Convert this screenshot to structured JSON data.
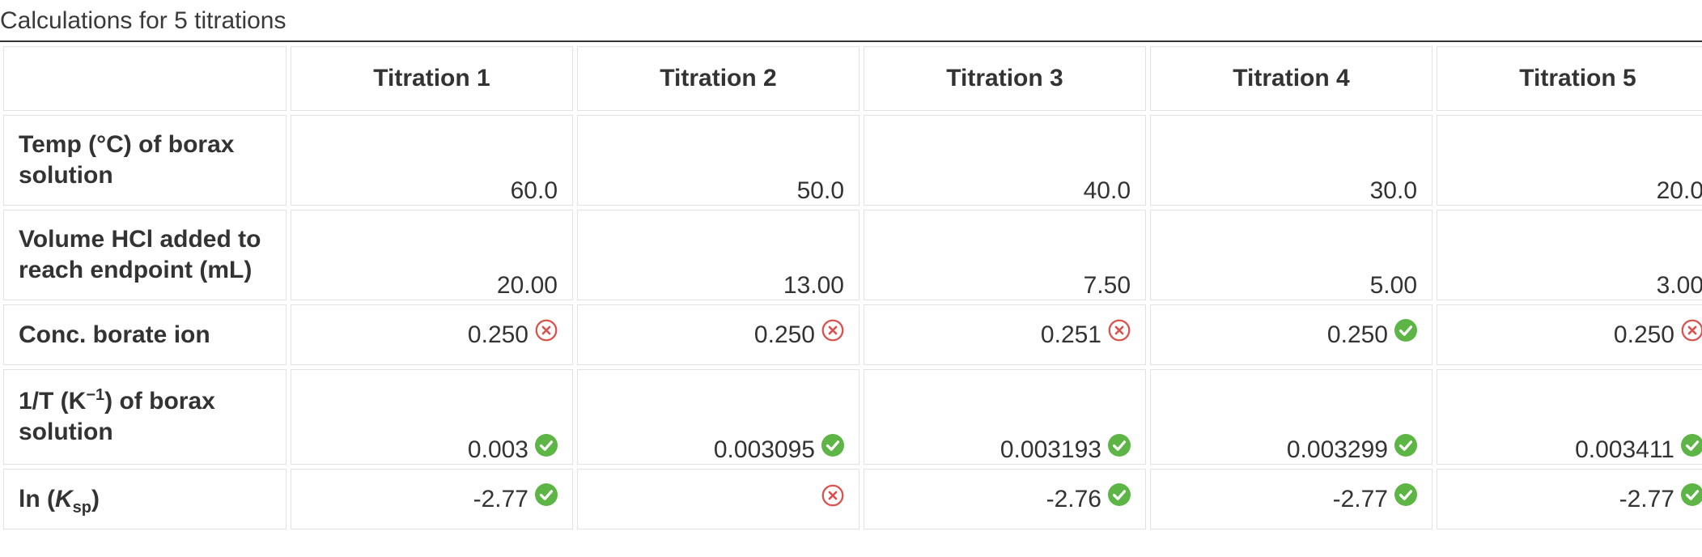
{
  "caption": "Calculations for 5 titrations",
  "columns": [
    "Titration 1",
    "Titration 2",
    "Titration 3",
    "Titration 4",
    "Titration 5"
  ],
  "rows": {
    "temp": {
      "label": "Temp (°C) of borax solution",
      "values": [
        "60.0",
        "50.0",
        "40.0",
        "30.0",
        "20.0"
      ]
    },
    "volume": {
      "label": "Volume HCl added to reach endpoint (mL)",
      "values": [
        "20.00",
        "13.00",
        "7.50",
        "5.00",
        "3.00"
      ]
    },
    "conc": {
      "label": "Conc. borate ion",
      "values": [
        "0.250",
        "0.250",
        "0.251",
        "0.250",
        "0.250"
      ],
      "status": [
        "incorrect-icon",
        "incorrect-icon",
        "incorrect-icon",
        "correct-icon",
        "incorrect-icon"
      ]
    },
    "inv_t": {
      "label_prefix": "1/T (K",
      "label_sup": "−1",
      "label_suffix": ") of borax solution",
      "values": [
        "0.003",
        "0.003095",
        "0.003193",
        "0.003299",
        "0.003411"
      ],
      "status": [
        "correct-icon",
        "correct-icon",
        "correct-icon",
        "correct-icon",
        "correct-icon"
      ]
    },
    "ln_ksp": {
      "label_prefix": "ln (",
      "label_ital": "K",
      "label_sub": "sp",
      "label_suffix": ")",
      "values": [
        "-2.77",
        "",
        "-2.76",
        "-2.77",
        "-2.77"
      ],
      "status": [
        "correct-icon",
        "incorrect-icon",
        "correct-icon",
        "correct-icon",
        "correct-icon"
      ]
    }
  },
  "colors": {
    "correct": "#5cb545",
    "incorrect": "#d9534f",
    "border": "#e2e2e2",
    "text": "#333333"
  }
}
